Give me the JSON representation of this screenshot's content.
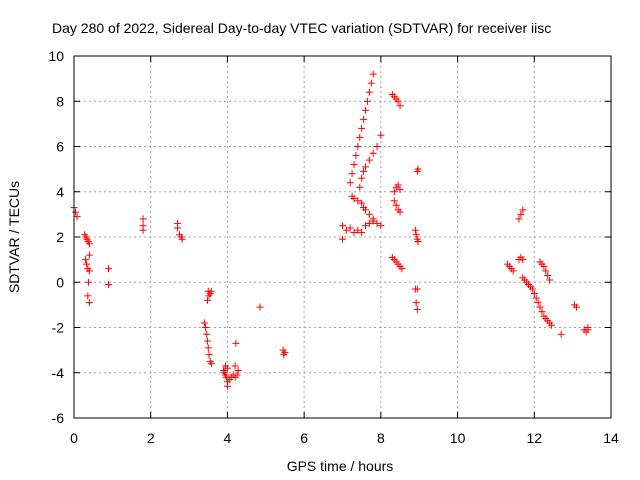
{
  "chart_data": {
    "type": "scatter",
    "title": "Day 280 of 2022, Sidereal Day-to-day VTEC variation (SDTVAR) for receiver iisc",
    "xlabel": "GPS time / hours",
    "ylabel": "SDTVAR / TECUs",
    "xlim": [
      0,
      14
    ],
    "ylim": [
      -6,
      10
    ],
    "xticks": [
      0,
      2,
      4,
      6,
      8,
      10,
      12,
      14
    ],
    "yticks": [
      -6,
      -4,
      -2,
      0,
      2,
      4,
      6,
      8,
      10
    ],
    "grid": true,
    "marker": "+",
    "color": "#ff0000",
    "series": [
      {
        "points": [
          [
            0.0,
            3.3
          ],
          [
            0.04,
            3.1
          ],
          [
            0.08,
            2.9
          ],
          [
            0.28,
            2.1
          ],
          [
            0.31,
            2.0
          ],
          [
            0.34,
            1.9
          ],
          [
            0.37,
            1.8
          ],
          [
            0.4,
            1.7
          ],
          [
            0.3,
            1.0
          ],
          [
            0.33,
            0.8
          ],
          [
            0.36,
            0.6
          ],
          [
            0.4,
            1.2
          ],
          [
            0.4,
            0.5
          ],
          [
            0.36,
            -0.6
          ],
          [
            0.4,
            -0.9
          ],
          [
            0.38,
            0.0
          ],
          [
            0.9,
            0.6
          ],
          [
            0.9,
            -0.1
          ],
          [
            1.8,
            2.8
          ],
          [
            1.8,
            2.5
          ],
          [
            1.8,
            2.3
          ],
          [
            2.7,
            2.6
          ],
          [
            2.7,
            2.4
          ],
          [
            2.75,
            2.1
          ],
          [
            2.8,
            2.0
          ],
          [
            2.82,
            1.9
          ],
          [
            3.4,
            -1.8
          ],
          [
            3.43,
            -2.0
          ],
          [
            3.46,
            -2.3
          ],
          [
            3.48,
            -2.6
          ],
          [
            3.5,
            -2.9
          ],
          [
            3.52,
            -3.2
          ],
          [
            3.55,
            -3.5
          ],
          [
            3.58,
            -3.6
          ],
          [
            3.5,
            -0.4
          ],
          [
            3.52,
            -0.6
          ],
          [
            3.55,
            -0.5
          ],
          [
            3.58,
            -0.4
          ],
          [
            3.48,
            -0.8
          ],
          [
            3.9,
            -3.9
          ],
          [
            3.92,
            -4.0
          ],
          [
            3.95,
            -4.1
          ],
          [
            3.97,
            -4.2
          ],
          [
            4.0,
            -4.4
          ],
          [
            4.0,
            -4.6
          ],
          [
            4.05,
            -4.3
          ],
          [
            4.1,
            -4.2
          ],
          [
            4.15,
            -4.1
          ],
          [
            4.2,
            -4.2
          ],
          [
            4.25,
            -4.1
          ],
          [
            4.28,
            -3.9
          ],
          [
            3.95,
            -3.7
          ],
          [
            4.0,
            -3.8
          ],
          [
            4.2,
            -3.7
          ],
          [
            4.22,
            -2.7
          ],
          [
            4.85,
            -1.1
          ],
          [
            5.45,
            -3.0
          ],
          [
            5.47,
            -3.2
          ],
          [
            5.5,
            -3.1
          ],
          [
            7.0,
            2.5
          ],
          [
            7.0,
            1.9
          ],
          [
            7.1,
            2.3
          ],
          [
            7.2,
            2.4
          ],
          [
            7.3,
            2.2
          ],
          [
            7.4,
            2.3
          ],
          [
            7.5,
            2.2
          ],
          [
            7.6,
            2.5
          ],
          [
            7.7,
            2.6
          ],
          [
            7.8,
            2.7
          ],
          [
            7.2,
            4.4
          ],
          [
            7.25,
            4.8
          ],
          [
            7.3,
            5.2
          ],
          [
            7.35,
            5.6
          ],
          [
            7.4,
            6.0
          ],
          [
            7.45,
            6.4
          ],
          [
            7.5,
            6.8
          ],
          [
            7.55,
            7.2
          ],
          [
            7.6,
            7.6
          ],
          [
            7.65,
            8.0
          ],
          [
            7.7,
            8.4
          ],
          [
            7.75,
            8.8
          ],
          [
            7.8,
            9.2
          ],
          [
            7.25,
            3.8
          ],
          [
            7.3,
            3.7
          ],
          [
            7.4,
            3.6
          ],
          [
            7.5,
            3.5
          ],
          [
            7.55,
            3.3
          ],
          [
            7.6,
            3.2
          ],
          [
            7.7,
            3.0
          ],
          [
            7.8,
            2.8
          ],
          [
            7.9,
            2.6
          ],
          [
            8.0,
            2.5
          ],
          [
            7.45,
            4.2
          ],
          [
            7.5,
            4.6
          ],
          [
            7.55,
            4.9
          ],
          [
            7.6,
            5.1
          ],
          [
            7.7,
            5.4
          ],
          [
            7.8,
            5.7
          ],
          [
            7.9,
            6.0
          ],
          [
            8.0,
            6.5
          ],
          [
            8.3,
            8.3
          ],
          [
            8.35,
            8.2
          ],
          [
            8.4,
            8.1
          ],
          [
            8.45,
            8.0
          ],
          [
            8.5,
            7.8
          ],
          [
            8.35,
            4.0
          ],
          [
            8.4,
            4.2
          ],
          [
            8.45,
            4.3
          ],
          [
            8.5,
            4.1
          ],
          [
            8.35,
            3.6
          ],
          [
            8.4,
            3.4
          ],
          [
            8.45,
            3.2
          ],
          [
            8.5,
            3.1
          ],
          [
            8.3,
            1.1
          ],
          [
            8.35,
            1.0
          ],
          [
            8.4,
            0.9
          ],
          [
            8.45,
            0.8
          ],
          [
            8.5,
            0.7
          ],
          [
            8.55,
            0.6
          ],
          [
            8.95,
            4.9
          ],
          [
            8.97,
            5.0
          ],
          [
            8.9,
            2.3
          ],
          [
            8.92,
            2.1
          ],
          [
            8.95,
            1.9
          ],
          [
            8.97,
            1.8
          ],
          [
            8.9,
            -0.3
          ],
          [
            8.95,
            -0.3
          ],
          [
            8.92,
            -0.9
          ],
          [
            8.95,
            -1.2
          ],
          [
            11.3,
            0.8
          ],
          [
            11.35,
            0.7
          ],
          [
            11.4,
            0.6
          ],
          [
            11.45,
            0.5
          ],
          [
            11.6,
            2.8
          ],
          [
            11.65,
            3.0
          ],
          [
            11.7,
            3.2
          ],
          [
            11.6,
            1.0
          ],
          [
            11.65,
            1.1
          ],
          [
            11.7,
            1.0
          ],
          [
            11.7,
            0.2
          ],
          [
            11.75,
            0.1
          ],
          [
            11.8,
            0.0
          ],
          [
            11.85,
            -0.1
          ],
          [
            11.9,
            -0.2
          ],
          [
            11.95,
            -0.3
          ],
          [
            12.0,
            -0.5
          ],
          [
            12.05,
            -0.7
          ],
          [
            12.1,
            -0.9
          ],
          [
            12.15,
            -1.1
          ],
          [
            12.2,
            -1.3
          ],
          [
            12.25,
            -1.5
          ],
          [
            12.3,
            -1.6
          ],
          [
            12.35,
            -1.7
          ],
          [
            12.4,
            -1.8
          ],
          [
            12.45,
            -1.9
          ],
          [
            12.15,
            0.9
          ],
          [
            12.2,
            0.8
          ],
          [
            12.25,
            0.7
          ],
          [
            12.3,
            0.5
          ],
          [
            12.35,
            0.3
          ],
          [
            12.4,
            0.1
          ],
          [
            12.7,
            -2.3
          ],
          [
            13.05,
            -1.0
          ],
          [
            13.1,
            -1.1
          ],
          [
            13.3,
            -2.1
          ],
          [
            13.35,
            -2.2
          ],
          [
            13.4,
            -2.1
          ],
          [
            13.4,
            -2.0
          ]
        ]
      }
    ]
  }
}
